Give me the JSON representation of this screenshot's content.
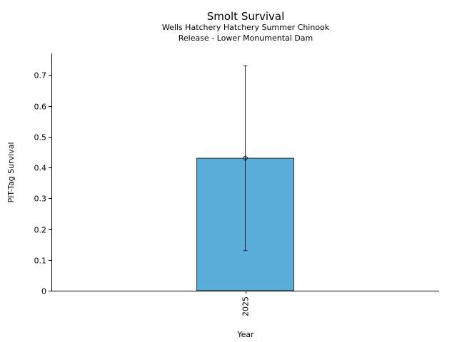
{
  "chart_data": {
    "type": "bar",
    "title": "Smolt Survival",
    "subtitle_lines": [
      "Wells Hatchery Hatchery Summer Chinook",
      "Release - Lower Monumental Dam"
    ],
    "xlabel": "Year",
    "ylabel": "PIT-Tag Survival",
    "categories": [
      "2025"
    ],
    "series": [
      {
        "values": [
          0.43
        ],
        "error_low": [
          0.13
        ],
        "error_high": [
          0.73
        ],
        "color": "#5aadd8"
      }
    ],
    "ylim": [
      0,
      0.77
    ],
    "yticks": [
      0,
      0.1,
      0.2,
      0.3,
      0.4,
      0.5,
      0.6,
      0.7
    ],
    "grid": false,
    "legend": "none"
  }
}
